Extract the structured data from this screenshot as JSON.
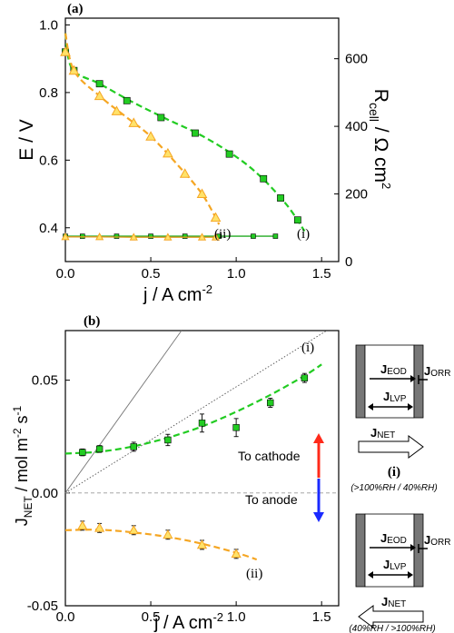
{
  "chart_data": [
    {
      "panel": "(a)",
      "type": "line",
      "xlabel_base": "j / A cm",
      "xlabel_sup": "-2",
      "ylabel": "E / V",
      "y2label_base": "R",
      "y2label_sub": "cell",
      "y2label_mid": " / Ω cm",
      "y2label_sup": "2",
      "xlim": [
        0,
        1.6
      ],
      "ylim": [
        0.3,
        1.02
      ],
      "y2lim": [
        0,
        720
      ],
      "xticks": [
        "0.0",
        "0.5",
        "1.0",
        "1.5"
      ],
      "yticks": [
        "0.4",
        "0.6",
        "0.8",
        "1.0"
      ],
      "y2ticks": [
        "0",
        "200",
        "400",
        "600"
      ],
      "grid": false,
      "series": [
        {
          "name": "(i)",
          "color": "#22cc22",
          "marker": "square",
          "x": [
            0.0,
            0.05,
            0.2,
            0.36,
            0.56,
            0.76,
            0.96,
            1.16,
            1.26,
            1.36
          ],
          "y": [
            0.92,
            0.865,
            0.826,
            0.776,
            0.726,
            0.68,
            0.618,
            0.545,
            0.488,
            0.423
          ],
          "fit_x": [
            0.0,
            0.04,
            0.2,
            0.4,
            0.6,
            0.8,
            1.0,
            1.15,
            1.3,
            1.4
          ],
          "fit_y": [
            0.975,
            0.87,
            0.826,
            0.77,
            0.72,
            0.672,
            0.61,
            0.548,
            0.465,
            0.39
          ]
        },
        {
          "name": "(ii)",
          "color": "#f5a623",
          "marker": "triangle",
          "x": [
            0.0,
            0.05,
            0.2,
            0.3,
            0.4,
            0.5,
            0.6,
            0.7,
            0.8,
            0.88
          ],
          "y": [
            0.92,
            0.865,
            0.79,
            0.745,
            0.71,
            0.67,
            0.62,
            0.56,
            0.5,
            0.43
          ],
          "fit_x": [
            0.0,
            0.05,
            0.2,
            0.35,
            0.5,
            0.65,
            0.8,
            0.9
          ],
          "fit_y": [
            0.975,
            0.865,
            0.79,
            0.73,
            0.67,
            0.59,
            0.5,
            0.41
          ]
        },
        {
          "name": "(i) R_cell",
          "color": "#22cc22",
          "marker": "square",
          "axis": "y2",
          "x": [
            0.0,
            0.1,
            0.3,
            0.5,
            0.7,
            0.9,
            1.1,
            1.23
          ],
          "y2": [
            75,
            75,
            75,
            75,
            75,
            75,
            75,
            75
          ]
        },
        {
          "name": "(ii) R_cell",
          "color": "#f5a623",
          "marker": "triangle",
          "axis": "y2",
          "x": [
            0.0,
            0.2,
            0.4,
            0.6,
            0.8,
            0.88
          ],
          "y2": [
            73,
            73,
            72,
            72,
            72,
            72
          ]
        }
      ],
      "curve_labels": [
        "(i)",
        "(ii)"
      ]
    },
    {
      "panel": "(b)",
      "type": "scatter",
      "xlabel_base": "j / A cm",
      "xlabel_sup": "-2",
      "ylabel_base": "J",
      "ylabel_sub": "NET",
      "ylabel_mid": " / mol m",
      "ylabel_sup1": "-2",
      "ylabel_mid2": " s",
      "ylabel_sup2": "-1",
      "xlim": [
        0,
        1.6
      ],
      "ylim": [
        -0.05,
        0.072
      ],
      "xticks": [
        "0.0",
        "0.5",
        "1.0",
        "1.5"
      ],
      "yticks": [
        "-0.05",
        "0.00",
        "0.05"
      ],
      "grid": false,
      "series": [
        {
          "name": "(i)",
          "color": "#22cc22",
          "marker": "square",
          "x": [
            0.1,
            0.2,
            0.4,
            0.6,
            0.8,
            1.0,
            1.2,
            1.4
          ],
          "y": [
            0.018,
            0.0195,
            0.0205,
            0.0235,
            0.031,
            0.029,
            0.04,
            0.051
          ],
          "err": [
            0.0015,
            0.0015,
            0.002,
            0.0025,
            0.004,
            0.004,
            0.002,
            0.002
          ],
          "fit_x": [
            0.0,
            0.2,
            0.4,
            0.6,
            0.8,
            1.0,
            1.2,
            1.4,
            1.5
          ],
          "fit_y": [
            0.0175,
            0.0183,
            0.0207,
            0.0245,
            0.0295,
            0.036,
            0.0435,
            0.052,
            0.057
          ]
        },
        {
          "name": "(ii)",
          "color": "#f5a623",
          "marker": "triangle",
          "x": [
            0.1,
            0.2,
            0.4,
            0.6,
            0.8,
            1.0
          ],
          "y": [
            -0.0145,
            -0.0155,
            -0.0165,
            -0.0185,
            -0.023,
            -0.027
          ],
          "err": [
            0.002,
            0.002,
            0.002,
            0.002,
            0.002,
            0.002
          ],
          "fit_x": [
            0.0,
            0.2,
            0.4,
            0.6,
            0.8,
            1.0,
            1.12
          ],
          "fit_y": [
            -0.0165,
            -0.0163,
            -0.0175,
            -0.0195,
            -0.0225,
            -0.0265,
            -0.0295
          ]
        }
      ],
      "reference_lines": [
        {
          "style": "solid",
          "color": "#777777",
          "x": [
            0.0,
            0.68
          ],
          "y": [
            0.0,
            0.072
          ]
        },
        {
          "style": "dotted",
          "color": "#555555",
          "x": [
            0.0,
            1.53
          ],
          "y": [
            0.0,
            0.072
          ]
        },
        {
          "style": "dashed",
          "color": "#999999",
          "x": [
            0.0,
            1.6
          ],
          "y": [
            0.0,
            0.0
          ]
        }
      ],
      "annotations": [
        "(i)",
        "(ii)",
        "To cathode",
        "To anode"
      ]
    }
  ],
  "schematics": [
    {
      "flux_eod": "J",
      "flux_eod_sub": "EOD",
      "flux_orr": "J",
      "flux_orr_sub": "ORR",
      "flux_lvp": "J",
      "flux_lvp_sub": "LVP",
      "flux_net": "J",
      "flux_net_sub": "NET",
      "label": "(i)",
      "condition": "(>100%RH / 40%RH)"
    },
    {
      "flux_eod": "J",
      "flux_eod_sub": "EOD",
      "flux_orr": "J",
      "flux_orr_sub": "ORR",
      "flux_lvp": "J",
      "flux_lvp_sub": "LVP",
      "flux_net": "J",
      "flux_net_sub": "NET",
      "label": "(ii)",
      "condition": "(40%RH / >100%RH)"
    }
  ]
}
